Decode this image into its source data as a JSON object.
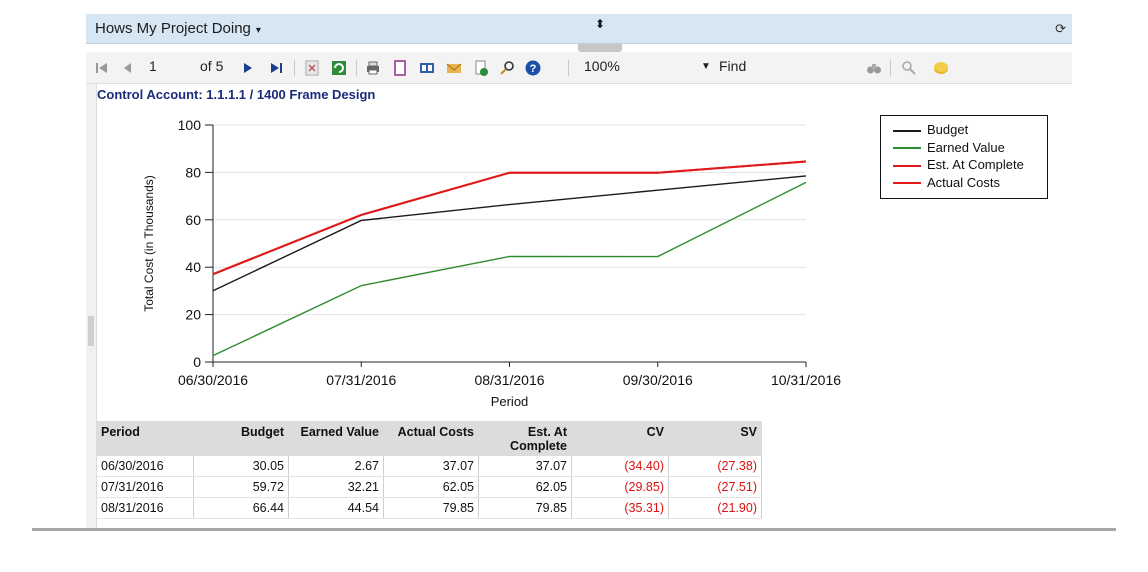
{
  "window": {
    "title": "Hows My Project Doing",
    "caret": "▾",
    "updown": "⬍",
    "refresh_icon": "⟳"
  },
  "toolbar": {
    "page_current": "1",
    "page_of": "of 5",
    "zoom": "100%",
    "find_label": "Find",
    "icons": [
      "first-page",
      "prev-page",
      "next-page",
      "last-page",
      "export",
      "refresh",
      "print",
      "page-setup",
      "document-map",
      "email",
      "new-document",
      "search",
      "help",
      "binoculars",
      "link",
      "coin"
    ]
  },
  "report": {
    "control_account": "Control Account: 1.1.1.1 / 1400 Frame Design"
  },
  "chart_data": {
    "type": "line",
    "x": [
      "06/30/2016",
      "07/31/2016",
      "08/31/2016",
      "09/30/2016",
      "10/31/2016"
    ],
    "xlabel": "Period",
    "ylabel": "Total Cost (in Thousands)",
    "ylim": [
      0,
      100
    ],
    "yticks": [
      0,
      20,
      40,
      60,
      80,
      100
    ],
    "grid": true,
    "legend_position": "right",
    "series": [
      {
        "name": "Budget",
        "color": "#1a1a1a",
        "values": [
          30.05,
          59.72,
          66.44,
          72.5,
          78.5
        ]
      },
      {
        "name": "Earned Value",
        "color": "#2e8b2e",
        "values": [
          2.67,
          32.21,
          44.54,
          44.5,
          75.8
        ]
      },
      {
        "name": "Est. At Complete",
        "color": "#e01b1b",
        "values": [
          37.07,
          62.05,
          79.85,
          79.85,
          84.6
        ]
      },
      {
        "name": "Actual Costs",
        "color": "#e01b1b",
        "values": [
          37.07,
          62.05,
          79.85,
          79.85,
          84.6
        ]
      }
    ]
  },
  "table": {
    "headers": [
      "Period",
      "Budget",
      "Earned Value",
      "Actual Costs",
      "Est. At\nComplete",
      "CV",
      "SV"
    ],
    "rows": [
      [
        "06/30/2016",
        "30.05",
        "2.67",
        "37.07",
        "37.07",
        "(34.40)",
        "(27.38)"
      ],
      [
        "07/31/2016",
        "59.72",
        "32.21",
        "62.05",
        "62.05",
        "(29.85)",
        "(27.51)"
      ],
      [
        "08/31/2016",
        "66.44",
        "44.54",
        "79.85",
        "79.85",
        "(35.31)",
        "(21.90)"
      ]
    ]
  }
}
